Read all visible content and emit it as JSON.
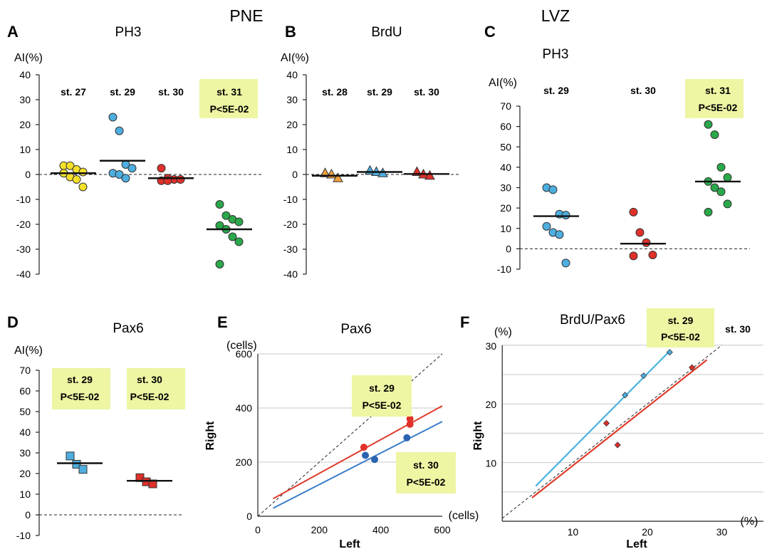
{
  "headers": {
    "pne": "PNE",
    "lvz": "LVZ"
  },
  "colors": {
    "yellow": "#f5e02a",
    "blue": "#4daee0",
    "red": "#e0302a",
    "green": "#2aa84a",
    "orange": "#f0a040",
    "darkblue": "#2a64b0",
    "highlight": "#eef5a3",
    "line_blue": "#3a7cc8",
    "line_red": "#e03a2a",
    "line_cyan": "#4ab2e0"
  },
  "chart_data": [
    {
      "id": "A",
      "type": "scatter",
      "letter": "A",
      "title": "PH3",
      "ylabel": "AI(%)",
      "ylim": [
        -40,
        40
      ],
      "yticks": [
        "-40",
        "-30",
        "-20",
        "-10",
        "0",
        "10",
        "20",
        "30",
        "40"
      ],
      "groups": [
        {
          "label": "st. 27",
          "color": "yellow",
          "marker": "circle",
          "mean": 0.5,
          "highlight": false,
          "values": [
            3.5,
            3.5,
            2,
            1,
            0.5,
            -1,
            -2,
            -5
          ]
        },
        {
          "label": "st. 29",
          "color": "blue",
          "marker": "circle",
          "mean": 5.5,
          "highlight": false,
          "values": [
            23,
            17.5,
            4,
            2.5,
            0.5,
            0,
            -1.5
          ]
        },
        {
          "label": "st. 30",
          "color": "red",
          "marker": "circle",
          "mean": -1.5,
          "highlight": false,
          "values": [
            2.5,
            -1.5,
            -2,
            -2,
            -2.5,
            -2.5
          ]
        },
        {
          "label": "st. 31",
          "pval": "P<5E-02",
          "color": "green",
          "marker": "circle",
          "mean": -22,
          "highlight": true,
          "values": [
            -12,
            -16.5,
            -18,
            -19,
            -20.5,
            -22,
            -25,
            -27,
            -36
          ]
        }
      ]
    },
    {
      "id": "B",
      "type": "scatter",
      "letter": "B",
      "title": "BrdU",
      "ylabel": "AI(%)",
      "ylim": [
        -40,
        40
      ],
      "yticks": [
        "-40",
        "-30",
        "-20",
        "-10",
        "0",
        "10",
        "20",
        "30",
        "40"
      ],
      "groups": [
        {
          "label": "st. 28",
          "color": "orange",
          "marker": "triangle",
          "mean": -0.5,
          "highlight": false,
          "values": [
            0,
            0.5,
            -1.5
          ]
        },
        {
          "label": "st. 29",
          "color": "blue",
          "marker": "triangle",
          "mean": 1,
          "highlight": false,
          "values": [
            1,
            1.5,
            0.5
          ]
        },
        {
          "label": "st. 30",
          "color": "red",
          "marker": "triangle",
          "mean": 0.2,
          "highlight": false,
          "values": [
            1,
            0,
            -0.5
          ]
        }
      ]
    },
    {
      "id": "C",
      "type": "scatter",
      "letter": "C",
      "title": "PH3",
      "ylabel": "AI(%)",
      "ylim": [
        -10,
        70
      ],
      "yticks": [
        "-10",
        "0",
        "10",
        "20",
        "30",
        "40",
        "50",
        "60",
        "70"
      ],
      "groups": [
        {
          "label": "st. 29",
          "color": "blue",
          "marker": "circle",
          "mean": 16,
          "highlight": false,
          "values": [
            30,
            29,
            17,
            16.5,
            11,
            8,
            7,
            -7
          ]
        },
        {
          "label": "st. 30",
          "color": "red",
          "marker": "circle",
          "mean": 2.5,
          "highlight": false,
          "values": [
            18,
            8,
            3,
            -3,
            -3.5
          ]
        },
        {
          "label": "st. 31",
          "pval": "P<5E-02",
          "color": "green",
          "marker": "circle",
          "mean": 33,
          "highlight": true,
          "values": [
            61,
            56,
            40,
            35,
            33,
            30,
            28,
            22,
            18
          ]
        }
      ]
    },
    {
      "id": "D",
      "type": "scatter",
      "letter": "D",
      "title": "Pax6",
      "ylabel": "AI(%)",
      "ylim": [
        -10,
        70
      ],
      "yticks": [
        "-10",
        "0",
        "10",
        "20",
        "30",
        "40",
        "50",
        "60",
        "70"
      ],
      "groups": [
        {
          "label": "st. 29",
          "pval": "P<5E-02",
          "color": "blue",
          "marker": "square",
          "mean": 25,
          "highlight": true,
          "values": [
            28.5,
            24.5,
            22
          ]
        },
        {
          "label": "st. 30",
          "pval": "P<5E-02",
          "color": "red",
          "marker": "square",
          "mean": 16.5,
          "highlight": true,
          "values": [
            18,
            16,
            15
          ]
        }
      ]
    },
    {
      "id": "E",
      "type": "scatter",
      "letter": "E",
      "title": "Pax6",
      "xlabel": "Left",
      "ylabel": "Right",
      "xunit": "(cells)",
      "yunit": "(cells)",
      "xlim": [
        0,
        600
      ],
      "ylim": [
        0,
        600
      ],
      "xticks": [
        "0",
        "200",
        "400",
        "600"
      ],
      "yticks": [
        "0",
        "200",
        "400",
        "600"
      ],
      "series": [
        {
          "color": "red",
          "points": [
            [
              345,
              255
            ],
            [
              495,
              360
            ],
            [
              495,
              340
            ]
          ],
          "fit": [
            [
              50,
              65
            ],
            [
              600,
              408
            ]
          ]
        },
        {
          "color": "darkblue",
          "points": [
            [
              350,
              225
            ],
            [
              380,
              210
            ],
            [
              485,
              290
            ]
          ],
          "fit": [
            [
              50,
              30
            ],
            [
              600,
              350
            ]
          ]
        }
      ],
      "labels": [
        {
          "text": "st. 29",
          "pval": "P<5E-02"
        },
        {
          "text": "st. 30",
          "pval": "P<5E-02"
        }
      ]
    },
    {
      "id": "F",
      "type": "scatter",
      "letter": "F",
      "title": "BrdU/Pax6",
      "xlabel": "Left",
      "ylabel": "Right",
      "xunit": "(%)",
      "yunit": "(%)",
      "xlim": [
        0,
        30
      ],
      "ylim": [
        0,
        30
      ],
      "xticks": [
        "10",
        "20",
        "30"
      ],
      "yticks": [
        "10",
        "20",
        "30"
      ],
      "series": [
        {
          "color": "blue",
          "points": [
            [
              17,
              21.5
            ],
            [
              19.5,
              24.8
            ],
            [
              23,
              28.8
            ]
          ],
          "fit": [
            [
              5,
              6
            ],
            [
              23,
              29
            ]
          ]
        },
        {
          "color": "red",
          "points": [
            [
              14.5,
              16.7
            ],
            [
              16,
              13
            ],
            [
              26,
              26.2
            ]
          ],
          "fit": [
            [
              4.5,
              4
            ],
            [
              28,
              27.5
            ]
          ]
        }
      ],
      "labels": [
        {
          "text": "st. 29",
          "pval": "P<5E-02"
        },
        {
          "text": "st. 30"
        }
      ]
    }
  ]
}
